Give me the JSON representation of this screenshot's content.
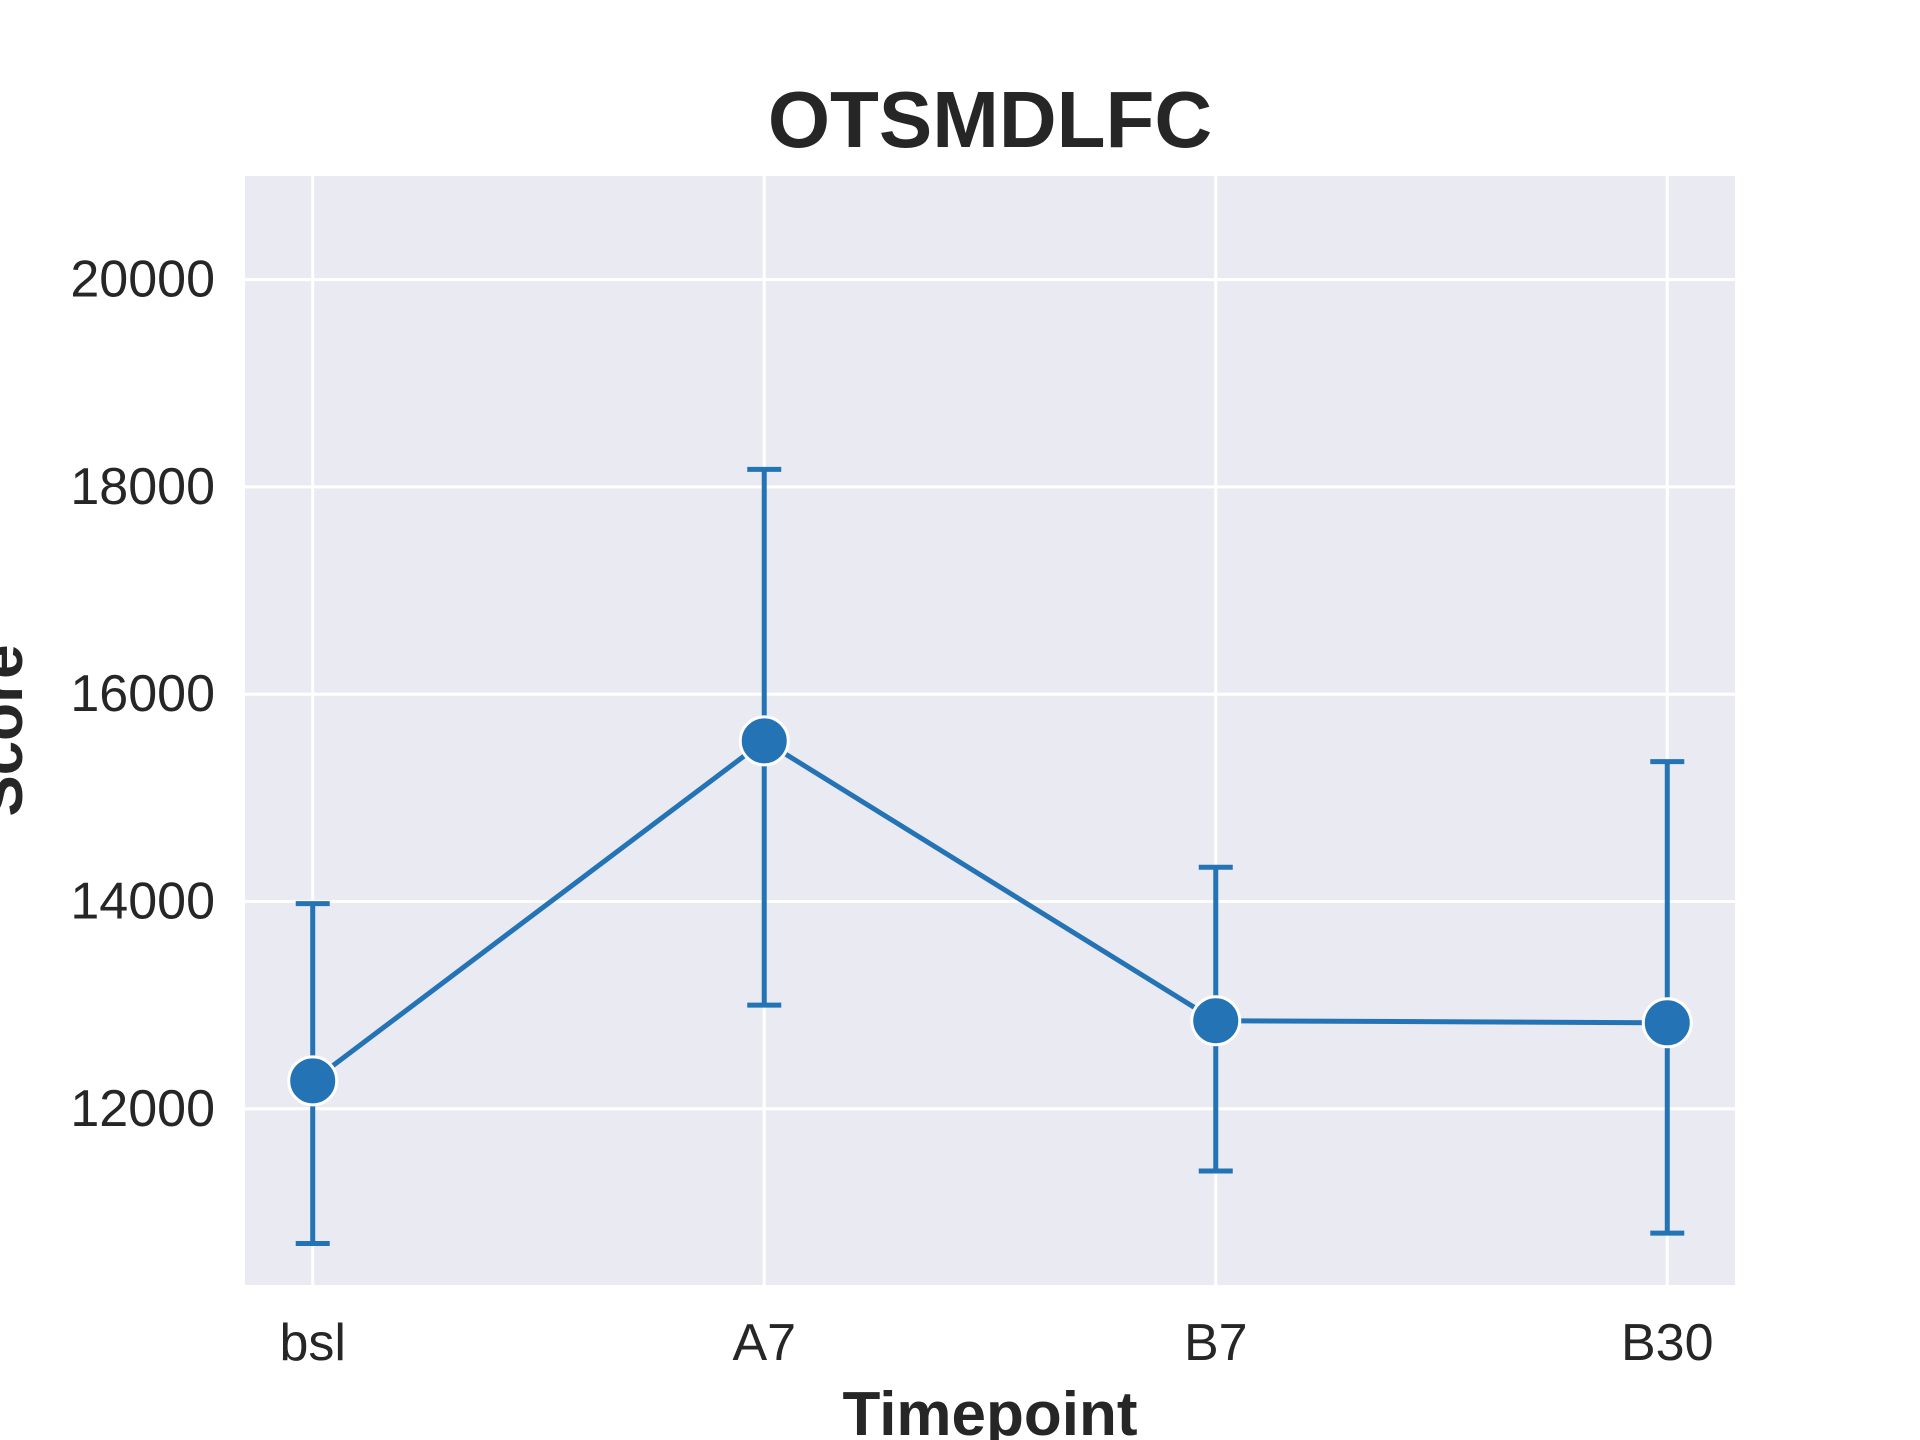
{
  "chart_data": {
    "type": "line",
    "title": "OTSMDLFC",
    "xlabel": "Timepoint",
    "ylabel": "Score",
    "categories": [
      "bsl",
      "A7",
      "B7",
      "B30"
    ],
    "series": [
      {
        "values": [
          12270,
          15550,
          12850,
          12830
        ],
        "error_low": [
          10700,
          13000,
          11400,
          10800
        ],
        "error_high": [
          13980,
          18170,
          14330,
          15350
        ]
      }
    ],
    "ylim": [
      10300,
      21000
    ],
    "yticks": [
      "12000",
      "14000",
      "16000",
      "18000",
      "20000"
    ],
    "grid": true,
    "background": "#eaeaf2",
    "grid_color": "#ffffff",
    "line_color": "#2474b5",
    "marker": "circle"
  }
}
